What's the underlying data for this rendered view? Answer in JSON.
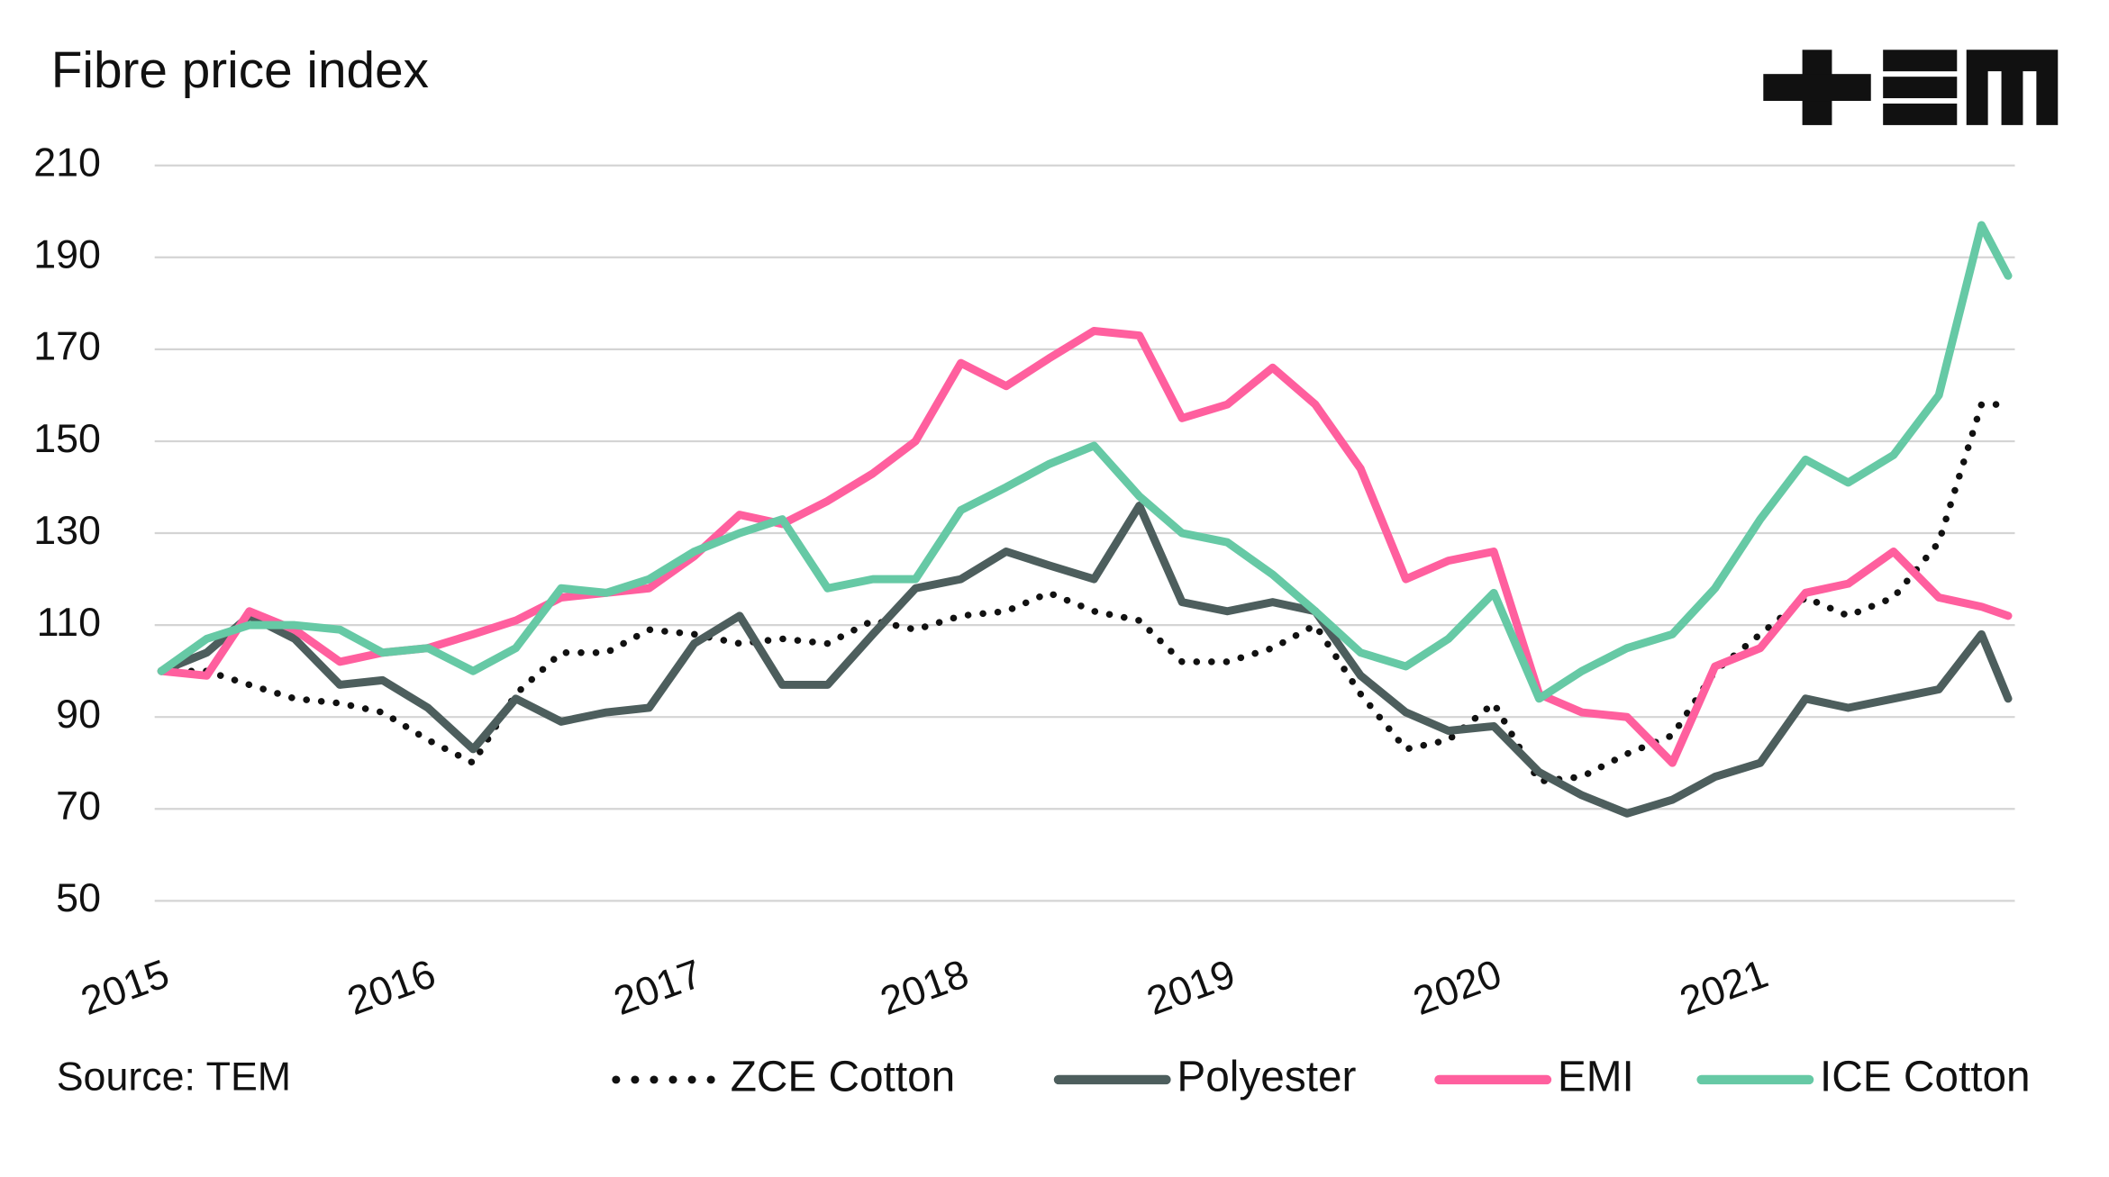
{
  "chart_data": {
    "type": "line",
    "title": "Fibre price index",
    "source": "Source: TEM",
    "x": [
      2015,
      2015.17,
      2015.33,
      2015.5,
      2015.67,
      2015.83,
      2016,
      2016.17,
      2016.33,
      2016.5,
      2016.67,
      2016.83,
      2017,
      2017.17,
      2017.33,
      2017.5,
      2017.67,
      2017.83,
      2018,
      2018.17,
      2018.33,
      2018.5,
      2018.67,
      2018.83,
      2019,
      2019.17,
      2019.33,
      2019.5,
      2019.67,
      2019.83,
      2020,
      2020.17,
      2020.33,
      2020.5,
      2020.67,
      2020.83,
      2021,
      2021.17,
      2021.33,
      2021.5,
      2021.67,
      2021.83,
      2021.93
    ],
    "xlim": [
      2015,
      2021.93
    ],
    "xticks": [
      2015,
      2016,
      2017,
      2018,
      2019,
      2020,
      2021
    ],
    "ylim": [
      50,
      210
    ],
    "yticks": [
      50,
      70,
      90,
      110,
      130,
      150,
      170,
      190,
      210
    ],
    "grid": true,
    "legend": "bottom",
    "series": [
      {
        "name": "ZCE Cotton",
        "color": "#111111",
        "dash": "dotted",
        "values": [
          100,
          100,
          97,
          94,
          93,
          91,
          85,
          80,
          95,
          104,
          104,
          109,
          108,
          106,
          107,
          106,
          111,
          109,
          112,
          113,
          117,
          113,
          111,
          102,
          102,
          105,
          110,
          95,
          83,
          85,
          93,
          76,
          77,
          82,
          86,
          100,
          108,
          116,
          112,
          116,
          128,
          158,
          158
        ]
      },
      {
        "name": "Polyester",
        "color": "#4d5e5d",
        "values": [
          100,
          104,
          112,
          107,
          97,
          98,
          92,
          83,
          94,
          89,
          91,
          92,
          106,
          112,
          97,
          97,
          108,
          118,
          120,
          126,
          123,
          120,
          136,
          115,
          113,
          115,
          113,
          99,
          91,
          87,
          88,
          78,
          73,
          69,
          72,
          77,
          80,
          94,
          92,
          94,
          96,
          108,
          94
        ]
      },
      {
        "name": "EMI",
        "color": "#ff5f9e",
        "values": [
          100,
          99,
          113,
          109,
          102,
          104,
          105,
          108,
          111,
          116,
          117,
          118,
          125,
          134,
          132,
          137,
          143,
          150,
          167,
          162,
          168,
          174,
          173,
          155,
          158,
          166,
          158,
          144,
          120,
          124,
          126,
          95,
          91,
          90,
          80,
          101,
          105,
          117,
          119,
          126,
          116,
          114,
          112
        ]
      },
      {
        "name": "ICE Cotton",
        "color": "#66c9a5",
        "values": [
          100,
          107,
          110,
          110,
          109,
          104,
          105,
          100,
          105,
          118,
          117,
          120,
          126,
          130,
          133,
          118,
          120,
          120,
          135,
          140,
          145,
          149,
          138,
          130,
          128,
          121,
          113,
          104,
          101,
          107,
          117,
          94,
          100,
          105,
          108,
          118,
          133,
          146,
          141,
          147,
          160,
          197,
          186
        ]
      }
    ]
  }
}
